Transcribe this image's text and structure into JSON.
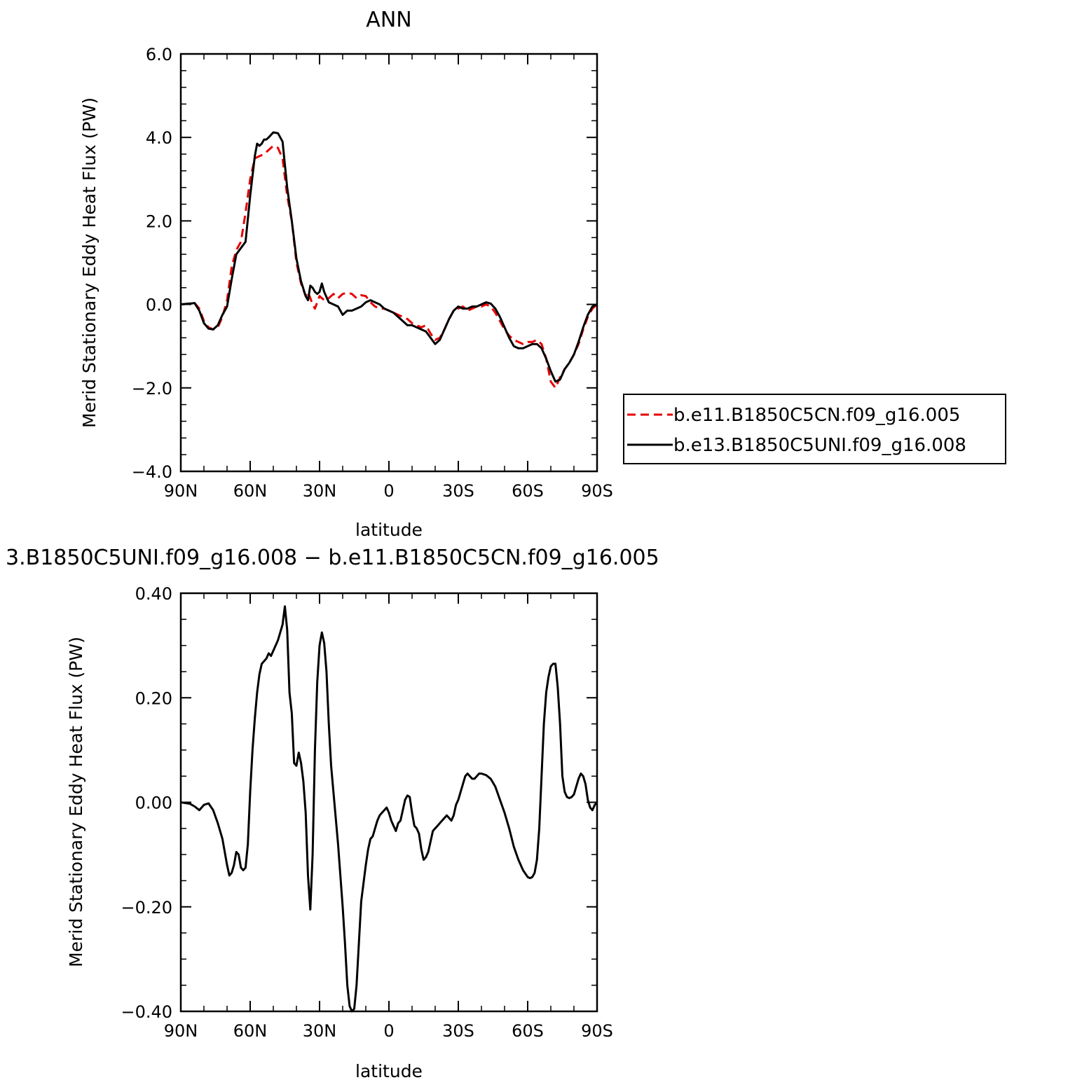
{
  "chart_data": [
    {
      "type": "line",
      "title": "ANN",
      "xlabel": "latitude",
      "ylabel": "Merid Stationary Eddy Heat Flux (PW)",
      "xlim": [
        90,
        -90
      ],
      "ylim": [
        -4,
        6
      ],
      "xticks": [
        90,
        60,
        30,
        0,
        -30,
        -60,
        -90
      ],
      "xtick_labels": [
        "90N",
        "60N",
        "30N",
        "0",
        "30S",
        "60S",
        "90S"
      ],
      "yticks": [
        -4,
        -2,
        0,
        2,
        4,
        6
      ],
      "ytick_labels": [
        "−4.0",
        "−2.0",
        "0.0",
        "2.0",
        "4.0",
        "6.0"
      ],
      "legend_position": "right",
      "series": [
        {
          "name": "b.e11.B1850C5CN.f09_g16.005",
          "color": "#e60000",
          "dash": true,
          "x": [
            90,
            84,
            82,
            80,
            78,
            76,
            74,
            72,
            70,
            68,
            66,
            64,
            62,
            60,
            58,
            56,
            54,
            52,
            50,
            48,
            46,
            44,
            42,
            40,
            38,
            36,
            35,
            34,
            33,
            32,
            31,
            30,
            28,
            26,
            24,
            22,
            20,
            18,
            16,
            14,
            12,
            10,
            8,
            6,
            4,
            2,
            0,
            -2,
            -4,
            -6,
            -8,
            -10,
            -12,
            -14,
            -16,
            -18,
            -20,
            -22,
            -24,
            -26,
            -28,
            -30,
            -32,
            -34,
            -36,
            -38,
            -40,
            -42,
            -44,
            -46,
            -48,
            -50,
            -52,
            -54,
            -56,
            -58,
            -60,
            -62,
            -64,
            -66,
            -68,
            -70,
            -72,
            -74,
            -76,
            -78,
            -80,
            -82,
            -84,
            -86,
            -88,
            -90
          ],
          "y": [
            0.0,
            0.03,
            -0.1,
            -0.4,
            -0.55,
            -0.6,
            -0.55,
            -0.3,
            0.1,
            0.9,
            1.3,
            1.5,
            2.2,
            3.0,
            3.5,
            3.55,
            3.6,
            3.7,
            3.8,
            3.75,
            3.5,
            2.6,
            2.0,
            1.0,
            0.5,
            0.2,
            0.3,
            0.15,
            0.0,
            -0.1,
            0.05,
            0.2,
            0.1,
            0.15,
            0.25,
            0.15,
            0.25,
            0.28,
            0.25,
            0.15,
            0.22,
            0.2,
            0.05,
            -0.05,
            -0.1,
            -0.1,
            -0.15,
            -0.2,
            -0.25,
            -0.3,
            -0.35,
            -0.45,
            -0.5,
            -0.55,
            -0.5,
            -0.7,
            -0.85,
            -0.8,
            -0.6,
            -0.35,
            -0.15,
            -0.1,
            -0.05,
            -0.15,
            -0.1,
            -0.05,
            -0.05,
            0.0,
            -0.05,
            -0.2,
            -0.4,
            -0.6,
            -0.75,
            -0.85,
            -0.9,
            -0.95,
            -0.9,
            -0.9,
            -0.85,
            -0.95,
            -1.3,
            -1.85,
            -2.0,
            -1.75,
            -1.55,
            -1.4,
            -1.2,
            -0.95,
            -0.6,
            -0.3,
            -0.1,
            0.0
          ]
        },
        {
          "name": "b.e13.B1850C5UNI.f09_g16.008",
          "color": "#000000",
          "dash": false,
          "x": [
            90,
            84,
            82,
            80,
            78,
            76,
            74,
            72,
            70,
            68,
            66,
            64,
            62,
            60,
            58,
            57,
            56,
            55,
            54,
            53,
            52,
            50,
            48,
            46,
            44,
            42,
            40,
            38,
            36,
            35,
            34,
            33,
            32,
            31,
            30,
            29,
            28,
            26,
            24,
            22,
            20,
            18,
            16,
            14,
            12,
            10,
            8,
            6,
            4,
            2,
            0,
            -2,
            -4,
            -6,
            -8,
            -10,
            -12,
            -14,
            -16,
            -18,
            -20,
            -22,
            -24,
            -26,
            -28,
            -30,
            -32,
            -34,
            -36,
            -38,
            -40,
            -42,
            -44,
            -46,
            -48,
            -50,
            -52,
            -54,
            -56,
            -58,
            -60,
            -62,
            -64,
            -66,
            -68,
            -70,
            -72,
            -74,
            -76,
            -78,
            -80,
            -82,
            -84,
            -86,
            -88,
            -90
          ],
          "y": [
            0.0,
            0.03,
            -0.15,
            -0.45,
            -0.58,
            -0.6,
            -0.5,
            -0.25,
            -0.05,
            0.6,
            1.2,
            1.35,
            1.5,
            2.6,
            3.55,
            3.85,
            3.8,
            3.85,
            3.95,
            3.95,
            4.0,
            4.12,
            4.1,
            3.9,
            2.8,
            2.0,
            1.1,
            0.55,
            0.2,
            0.1,
            0.45,
            0.4,
            0.3,
            0.25,
            0.3,
            0.5,
            0.3,
            0.05,
            0.0,
            -0.05,
            -0.25,
            -0.15,
            -0.15,
            -0.1,
            -0.05,
            0.05,
            0.1,
            0.05,
            0.0,
            -0.1,
            -0.15,
            -0.2,
            -0.3,
            -0.4,
            -0.5,
            -0.5,
            -0.55,
            -0.6,
            -0.65,
            -0.8,
            -0.95,
            -0.85,
            -0.6,
            -0.35,
            -0.15,
            -0.05,
            -0.1,
            -0.1,
            -0.05,
            -0.05,
            0.0,
            0.05,
            0.02,
            -0.1,
            -0.3,
            -0.55,
            -0.8,
            -1.0,
            -1.05,
            -1.05,
            -1.0,
            -0.95,
            -0.95,
            -1.05,
            -1.3,
            -1.6,
            -1.85,
            -1.8,
            -1.55,
            -1.4,
            -1.2,
            -0.9,
            -0.55,
            -0.25,
            -0.05,
            0.0
          ]
        }
      ]
    },
    {
      "type": "line",
      "title": "3.B1850C5UNI.f09_g16.008 − b.e11.B1850C5CN.f09_g16.005",
      "xlabel": "latitude",
      "ylabel": "Merid Stationary Eddy Heat Flux (PW)",
      "xlim": [
        90,
        -90
      ],
      "ylim": [
        -0.4,
        0.4
      ],
      "xticks": [
        90,
        60,
        30,
        0,
        -30,
        -60,
        -90
      ],
      "xtick_labels": [
        "90N",
        "60N",
        "30N",
        "0",
        "30S",
        "60S",
        "90S"
      ],
      "yticks": [
        -0.4,
        -0.2,
        0.0,
        0.2,
        0.4
      ],
      "ytick_labels": [
        "−0.40",
        "−0.20",
        "0.00",
        "0.20",
        "0.40"
      ],
      "series": [
        {
          "name": "",
          "color": "#000000",
          "dash": false,
          "x": [
            90,
            86,
            84,
            82,
            80,
            78,
            76,
            74,
            72,
            70,
            69,
            68,
            67,
            66,
            65,
            64,
            63,
            62,
            61,
            60,
            59,
            58,
            57,
            56,
            55,
            54,
            53,
            52,
            51,
            50,
            49,
            48,
            47,
            46,
            45,
            44,
            43,
            42,
            41,
            40,
            39,
            38,
            37,
            36,
            35,
            34,
            33,
            32,
            31,
            30,
            29,
            28,
            27,
            26,
            25,
            24,
            23,
            22,
            21,
            20,
            19,
            18,
            17,
            16,
            15,
            14,
            13,
            12,
            11,
            10,
            9,
            8,
            7,
            6,
            5,
            4,
            3,
            2,
            1,
            0,
            -1,
            -2,
            -3,
            -4,
            -5,
            -6,
            -7,
            -8,
            -9,
            -10,
            -11,
            -12,
            -13,
            -14,
            -15,
            -16,
            -17,
            -18,
            -19,
            -20,
            -21,
            -22,
            -23,
            -24,
            -25,
            -26,
            -27,
            -28,
            -29,
            -30,
            -31,
            -32,
            -33,
            -34,
            -35,
            -36,
            -37,
            -38,
            -39,
            -40,
            -42,
            -44,
            -46,
            -48,
            -50,
            -52,
            -54,
            -56,
            -58,
            -60,
            -61,
            -62,
            -63,
            -64,
            -65,
            -66,
            -67,
            -68,
            -69,
            -70,
            -71,
            -72,
            -73,
            -74,
            -75,
            -76,
            -77,
            -78,
            -79,
            -80,
            -81,
            -82,
            -83,
            -84,
            -85,
            -86,
            -87,
            -88,
            -89,
            -90
          ],
          "y": [
            0.0,
            -0.003,
            -0.008,
            -0.015,
            -0.005,
            -0.002,
            -0.015,
            -0.04,
            -0.07,
            -0.12,
            -0.14,
            -0.135,
            -0.12,
            -0.095,
            -0.1,
            -0.125,
            -0.13,
            -0.125,
            -0.08,
            0.02,
            0.1,
            0.16,
            0.21,
            0.245,
            0.265,
            0.27,
            0.275,
            0.285,
            0.28,
            0.29,
            0.3,
            0.31,
            0.325,
            0.34,
            0.375,
            0.33,
            0.21,
            0.17,
            0.075,
            0.07,
            0.095,
            0.075,
            0.04,
            -0.02,
            -0.14,
            -0.205,
            -0.1,
            0.1,
            0.23,
            0.3,
            0.325,
            0.305,
            0.25,
            0.15,
            0.07,
            0.02,
            -0.03,
            -0.08,
            -0.14,
            -0.2,
            -0.27,
            -0.35,
            -0.39,
            -0.4,
            -0.395,
            -0.35,
            -0.27,
            -0.19,
            -0.155,
            -0.12,
            -0.09,
            -0.07,
            -0.065,
            -0.05,
            -0.035,
            -0.025,
            -0.02,
            -0.015,
            -0.01,
            -0.02,
            -0.035,
            -0.045,
            -0.055,
            -0.04,
            -0.035,
            -0.015,
            0.005,
            0.013,
            0.01,
            -0.02,
            -0.045,
            -0.05,
            -0.06,
            -0.09,
            -0.11,
            -0.105,
            -0.095,
            -0.075,
            -0.055,
            -0.05,
            -0.045,
            -0.04,
            -0.035,
            -0.03,
            -0.025,
            -0.03,
            -0.035,
            -0.025,
            -0.005,
            0.005,
            0.02,
            0.035,
            0.05,
            0.055,
            0.05,
            0.045,
            0.045,
            0.05,
            0.055,
            0.055,
            0.052,
            0.045,
            0.03,
            0.005,
            -0.02,
            -0.05,
            -0.085,
            -0.11,
            -0.13,
            -0.143,
            -0.145,
            -0.143,
            -0.135,
            -0.11,
            -0.05,
            0.05,
            0.15,
            0.21,
            0.24,
            0.26,
            0.265,
            0.265,
            0.22,
            0.15,
            0.05,
            0.02,
            0.01,
            0.008,
            0.01,
            0.015,
            0.03,
            0.045,
            0.055,
            0.05,
            0.035,
            0.005,
            -0.01,
            -0.015,
            -0.005,
            0.0
          ]
        }
      ]
    }
  ]
}
